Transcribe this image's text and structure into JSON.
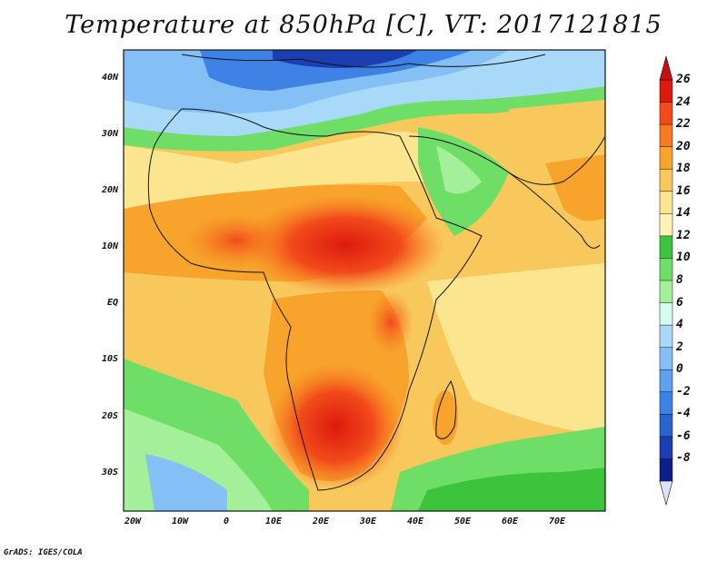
{
  "title": "Temperature at 850hPa [C], VT: 2017121815",
  "footer": "GrADS: IGES/COLA",
  "map": {
    "lat_labels": [
      "40N",
      "30N",
      "20N",
      "10N",
      "EQ",
      "10S",
      "20S",
      "30S"
    ],
    "lon_labels": [
      "20W",
      "10W",
      "0",
      "10E",
      "20E",
      "30E",
      "40E",
      "50E",
      "60E",
      "70E"
    ]
  },
  "colorbar": {
    "labels": [
      "26",
      "24",
      "22",
      "20",
      "18",
      "16",
      "14",
      "12",
      "10",
      "8",
      "6",
      "4",
      "2",
      "0",
      "-2",
      "-4",
      "-6",
      "-8"
    ],
    "colors": [
      "#dd1a0d",
      "#f24a1b",
      "#f87a1e",
      "#f7a32c",
      "#f9c85c",
      "#fbe58e",
      "#fff4b8",
      "#3ec43c",
      "#6fde67",
      "#a4f09a",
      "#d6fcf0",
      "#a9d9f9",
      "#84bff5",
      "#5ea1ef",
      "#3f82e5",
      "#2c63cf",
      "#1b3fb3",
      "#0e1f8a"
    ],
    "top_arrow_color": "#c8100f",
    "bottom_arrow_color": "#e0e0ff"
  }
}
